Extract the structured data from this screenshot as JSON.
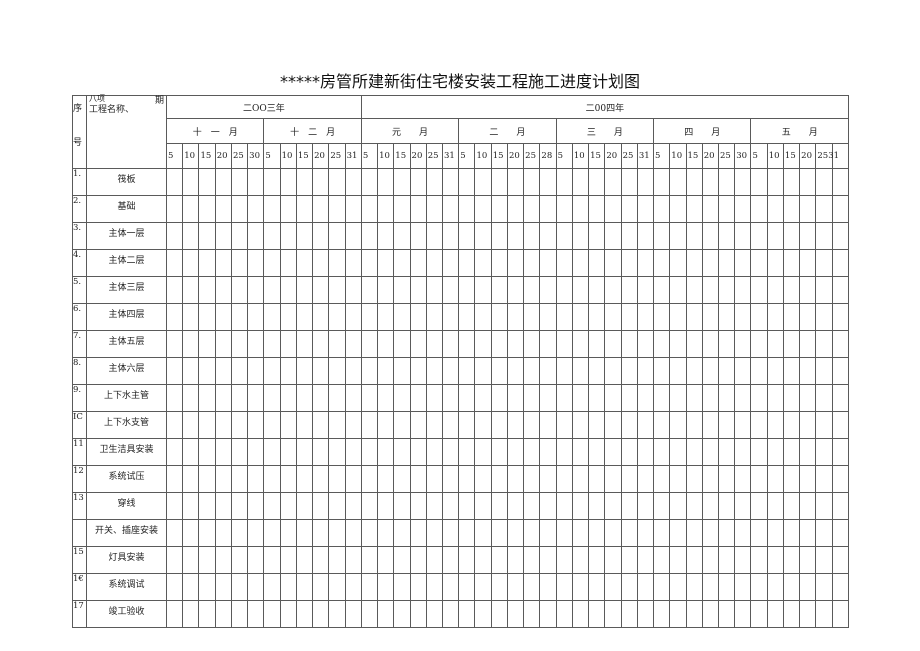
{
  "title": "*****房管所建新街住宅楼安装工程施工进度计划图",
  "header": {
    "seq_label_top": "序",
    "seq_label_bottom": "号",
    "name_label": "工程名称、",
    "item_label": "八项",
    "period_label": "期",
    "years": [
      {
        "label": "二OO三年",
        "months": 2
      },
      {
        "label": "二00四年",
        "months": 5
      }
    ],
    "months": [
      {
        "label": "十　一　月",
        "days": [
          "5",
          "10",
          "15",
          "20",
          "25",
          "30"
        ]
      },
      {
        "label": "十　二　月",
        "days": [
          "5",
          "10",
          "15",
          "20",
          "25",
          "31"
        ]
      },
      {
        "label": "元　　月",
        "days": [
          "5",
          "10",
          "15",
          "20",
          "25",
          "31"
        ]
      },
      {
        "label": "二　　月",
        "days": [
          "5",
          "10",
          "15",
          "20",
          "25",
          "28"
        ]
      },
      {
        "label": "三　　月",
        "days": [
          "5",
          "10",
          "15",
          "20",
          "25",
          "31"
        ]
      },
      {
        "label": "四　　月",
        "days": [
          "5",
          "10",
          "15",
          "20",
          "25",
          "30"
        ]
      },
      {
        "label": "五　　月",
        "days": [
          "5",
          "10",
          "15",
          "20",
          "2531",
          ""
        ]
      }
    ]
  },
  "rows": [
    {
      "seq": "1.",
      "name": "筏板"
    },
    {
      "seq": "2.",
      "name": "基础"
    },
    {
      "seq": "3.",
      "name": "主体一层"
    },
    {
      "seq": "4.",
      "name": "主体二层"
    },
    {
      "seq": "5.",
      "name": "主体三层"
    },
    {
      "seq": "6.",
      "name": "主体四层"
    },
    {
      "seq": "7.",
      "name": "主体五层"
    },
    {
      "seq": "8.",
      "name": "主体六层"
    },
    {
      "seq": "9.",
      "name": "上下水主管"
    },
    {
      "seq": "IC",
      "name": "上下水支管"
    },
    {
      "seq": "11",
      "name": "卫生洁具安装"
    },
    {
      "seq": "12",
      "name": "系统试压"
    },
    {
      "seq": "13",
      "name": "穿线"
    },
    {
      "seq": "",
      "name": "开关、插座安装"
    },
    {
      "seq": "15",
      "name": "灯具安装"
    },
    {
      "seq": "1€",
      "name": "系统调试"
    },
    {
      "seq": "17",
      "name": "竣工验收"
    }
  ]
}
